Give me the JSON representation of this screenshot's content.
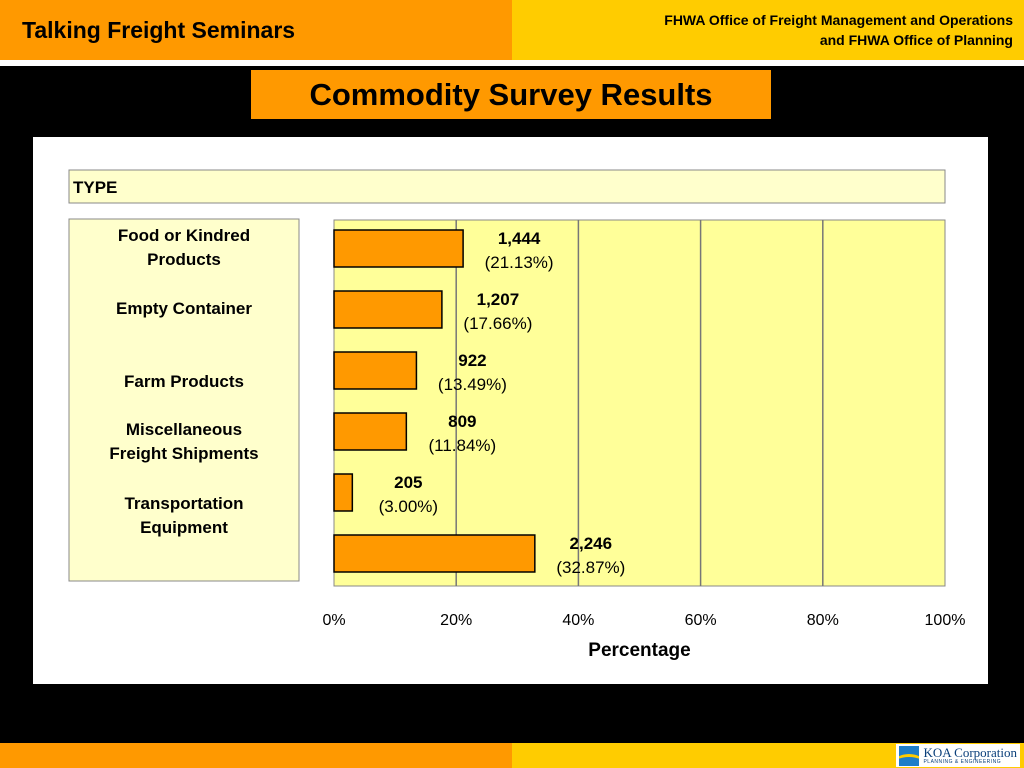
{
  "header": {
    "left_title": "Talking Freight Seminars",
    "right_line1": "FHWA Office of Freight Management and Operations",
    "right_line2": "and FHWA Office of Planning"
  },
  "slide_title": "Commodity Survey Results",
  "footer": {
    "logo_name": "KOA Corporation",
    "logo_sub": "PLANNING & ENGINEERING"
  },
  "chart_data": {
    "type": "bar",
    "orientation": "horizontal",
    "title": "",
    "group_label": "TYPE",
    "categories": [
      "Food or Kindred Products",
      "Empty Container",
      "Farm Products",
      "Miscellaneous Freight Shipments",
      "Transportation Equipment",
      ""
    ],
    "counts": [
      "1,444",
      "1,207",
      "922",
      "809",
      "205",
      "2,246"
    ],
    "percent_labels": [
      "(21.13%)",
      "(17.66%)",
      "(13.49%)",
      "(11.84%)",
      "(3.00%)",
      "(32.87%)"
    ],
    "values": [
      21.13,
      17.66,
      13.49,
      11.84,
      3.0,
      32.87
    ],
    "xlabel": "Percentage",
    "xlim": [
      0,
      100
    ],
    "xticks": [
      "0%",
      "20%",
      "40%",
      "60%",
      "80%",
      "100%"
    ],
    "grid": true,
    "colors": {
      "bar": "#ff9900",
      "plot_bg": "#ffff99",
      "header_bar": "#ffffcc"
    }
  }
}
